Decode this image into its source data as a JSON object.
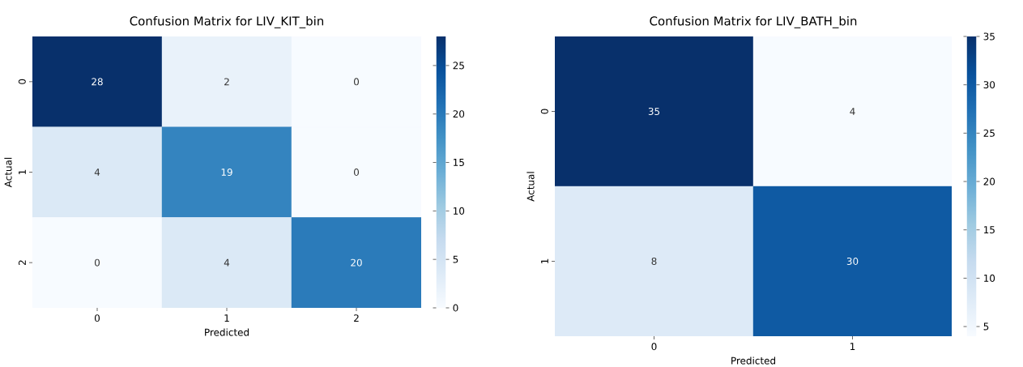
{
  "chart_data": [
    {
      "type": "heatmap",
      "title": "Confusion Matrix for LIV_KIT_bin",
      "xlabel": "Predicted",
      "ylabel": "Actual",
      "categories": [
        "0",
        "1",
        "2"
      ],
      "y_categories": [
        "0",
        "1",
        "2"
      ],
      "cells": [
        [
          28,
          2,
          0
        ],
        [
          4,
          19,
          0
        ],
        [
          0,
          4,
          20
        ]
      ],
      "clim": [
        0,
        28
      ],
      "cticks": [
        0,
        5,
        10,
        15,
        20,
        25
      ],
      "data_labels": true
    },
    {
      "type": "heatmap",
      "title": "Confusion Matrix for LIV_BATH_bin",
      "xlabel": "Predicted",
      "ylabel": "Actual",
      "categories": [
        "0",
        "1"
      ],
      "y_categories": [
        "0",
        "1"
      ],
      "cells": [
        [
          35,
          4
        ],
        [
          8,
          30
        ]
      ],
      "clim": [
        4,
        35
      ],
      "cticks": [
        5,
        10,
        15,
        20,
        25,
        30,
        35
      ],
      "data_labels": true
    }
  ]
}
